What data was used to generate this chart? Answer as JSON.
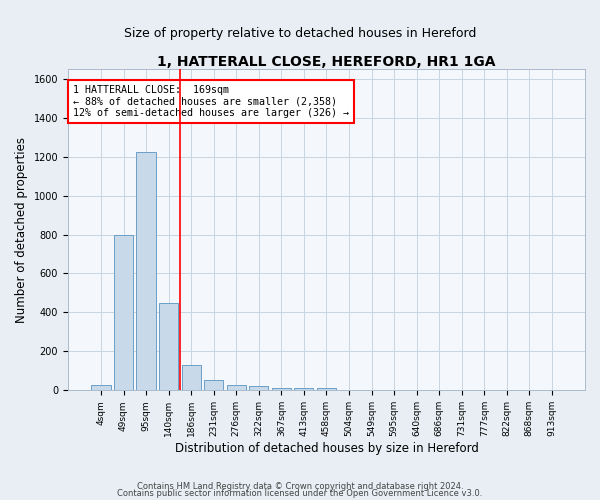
{
  "title": "1, HATTERALL CLOSE, HEREFORD, HR1 1GA",
  "subtitle": "Size of property relative to detached houses in Hereford",
  "xlabel": "Distribution of detached houses by size in Hereford",
  "ylabel": "Number of detached properties",
  "bin_labels": [
    "4sqm",
    "49sqm",
    "95sqm",
    "140sqm",
    "186sqm",
    "231sqm",
    "276sqm",
    "322sqm",
    "367sqm",
    "413sqm",
    "458sqm",
    "504sqm",
    "549sqm",
    "595sqm",
    "640sqm",
    "686sqm",
    "731sqm",
    "777sqm",
    "822sqm",
    "868sqm",
    "913sqm"
  ],
  "bar_values": [
    25,
    800,
    1225,
    450,
    130,
    55,
    25,
    20,
    12,
    12,
    12,
    0,
    0,
    0,
    0,
    0,
    0,
    0,
    0,
    0,
    0
  ],
  "bar_color": "#c8daea",
  "bar_edge_color": "#6a9fc8",
  "ylim": [
    0,
    1650
  ],
  "yticks": [
    0,
    200,
    400,
    600,
    800,
    1000,
    1200,
    1400,
    1600
  ],
  "red_line_index": 3.5,
  "annotation_text": "1 HATTERALL CLOSE:  169sqm\n← 88% of detached houses are smaller (2,358)\n12% of semi-detached houses are larger (326) →",
  "footnote1": "Contains HM Land Registry data © Crown copyright and database right 2024.",
  "footnote2": "Contains public sector information licensed under the Open Government Licence v3.0.",
  "bg_color": "#e8eef4",
  "plot_bg_color": "#f4f8fc",
  "grid_color": "#c8d4e0",
  "title_fontsize": 10,
  "subtitle_fontsize": 9,
  "tick_fontsize": 6.5,
  "axis_label_fontsize": 8.5
}
